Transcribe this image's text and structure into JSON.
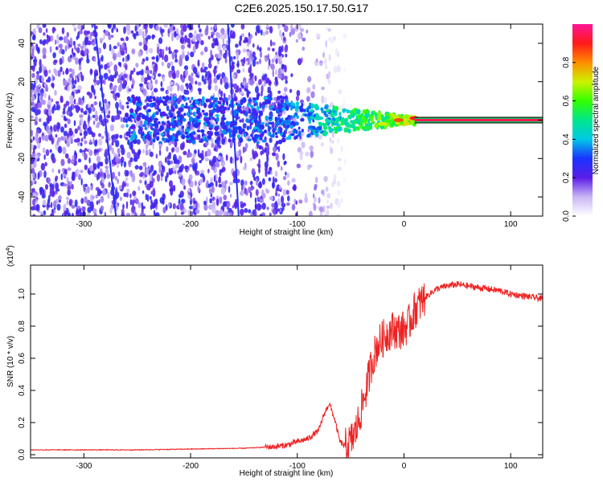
{
  "title": "C2E6.2025.150.17.50.G17",
  "colors": {
    "snr_line": "#ee2222",
    "carrier": "#ff1040",
    "heatmap_low": "#8855ee"
  },
  "chart_data": [
    {
      "type": "heatmap",
      "xlabel": "Height of straight line (km)",
      "ylabel": "Frequency (Hz)",
      "xlim": [
        -350,
        130
      ],
      "ylim": [
        -50,
        50
      ],
      "xticks": [
        "-300",
        "-200",
        "-100",
        "0",
        "100"
      ],
      "xtick_values": [
        -300,
        -200,
        -100,
        0,
        100
      ],
      "yticks": [
        "-40",
        "-20",
        "0",
        "20",
        "40"
      ],
      "ytick_values": [
        -40,
        -20,
        0,
        20,
        40
      ],
      "colorbar": {
        "label": "Normalized spectral amplitude",
        "range": [
          0,
          1
        ],
        "ticks": [
          "0.0",
          "0.2",
          "0.4",
          "0.6",
          "0.8"
        ],
        "tick_values": [
          0,
          0.2,
          0.4,
          0.6,
          0.8
        ]
      },
      "features": {
        "noise_x_range": [
          -350,
          -55
        ],
        "carrier_x_range": [
          10,
          130
        ],
        "carrier_frequency": 0,
        "carrier_amplitude": 0.95,
        "ridge_points": [
          {
            "x": -110,
            "f": -1,
            "a": 0.35
          },
          {
            "x": -80,
            "f": 1,
            "a": 0.45
          },
          {
            "x": -50,
            "f": -3,
            "a": 0.5
          },
          {
            "x": -35,
            "f": -4,
            "a": 0.55
          },
          {
            "x": -20,
            "f": -2,
            "a": 0.7
          },
          {
            "x": -5,
            "f": 0,
            "a": 0.85
          },
          {
            "x": 10,
            "f": 1,
            "a": 0.9
          }
        ],
        "streaks": [
          {
            "x_start": -290,
            "f_start": 50,
            "x_end": -270,
            "f_end": -50
          },
          {
            "x_start": -165,
            "f_start": 50,
            "x_end": -155,
            "f_end": -50
          }
        ]
      }
    },
    {
      "type": "line",
      "xlabel": "Height of straight line (km)",
      "ylabel": "SNR (10 * v/v)",
      "y_multiplier": "(x10",
      "y_multiplier_exp": "4",
      "y_multiplier_close": ")",
      "xlim": [
        -350,
        130
      ],
      "ylim": [
        -0.02,
        1.18
      ],
      "xticks": [
        "-300",
        "-200",
        "-100",
        "0",
        "100"
      ],
      "xtick_values": [
        -300,
        -200,
        -100,
        0,
        100
      ],
      "yticks": [
        "0.0",
        "0.2",
        "0.4",
        "0.6",
        "0.8",
        "1.0"
      ],
      "ytick_values": [
        0,
        0.2,
        0.4,
        0.6,
        0.8,
        1.0
      ],
      "series": [
        {
          "x": [
            -350,
            -300,
            -250,
            -200,
            -150,
            -120,
            -110,
            -100,
            -90,
            -80,
            -75,
            -70,
            -65,
            -60,
            -55,
            -50,
            -45,
            -40,
            -35,
            -30,
            -25,
            -20,
            -15,
            -10,
            -5,
            0,
            5,
            10,
            20,
            30,
            40,
            50,
            60,
            70,
            80,
            90,
            100,
            110,
            120,
            130
          ],
          "values": [
            0.03,
            0.03,
            0.03,
            0.035,
            0.04,
            0.05,
            0.06,
            0.08,
            0.1,
            0.15,
            0.25,
            0.32,
            0.22,
            0.08,
            0.05,
            0.08,
            0.15,
            0.28,
            0.42,
            0.58,
            0.68,
            0.72,
            0.76,
            0.78,
            0.77,
            0.78,
            0.82,
            0.9,
            0.98,
            1.03,
            1.05,
            1.06,
            1.05,
            1.04,
            1.03,
            1.02,
            1.0,
            0.99,
            0.98,
            0.97
          ]
        }
      ]
    }
  ]
}
